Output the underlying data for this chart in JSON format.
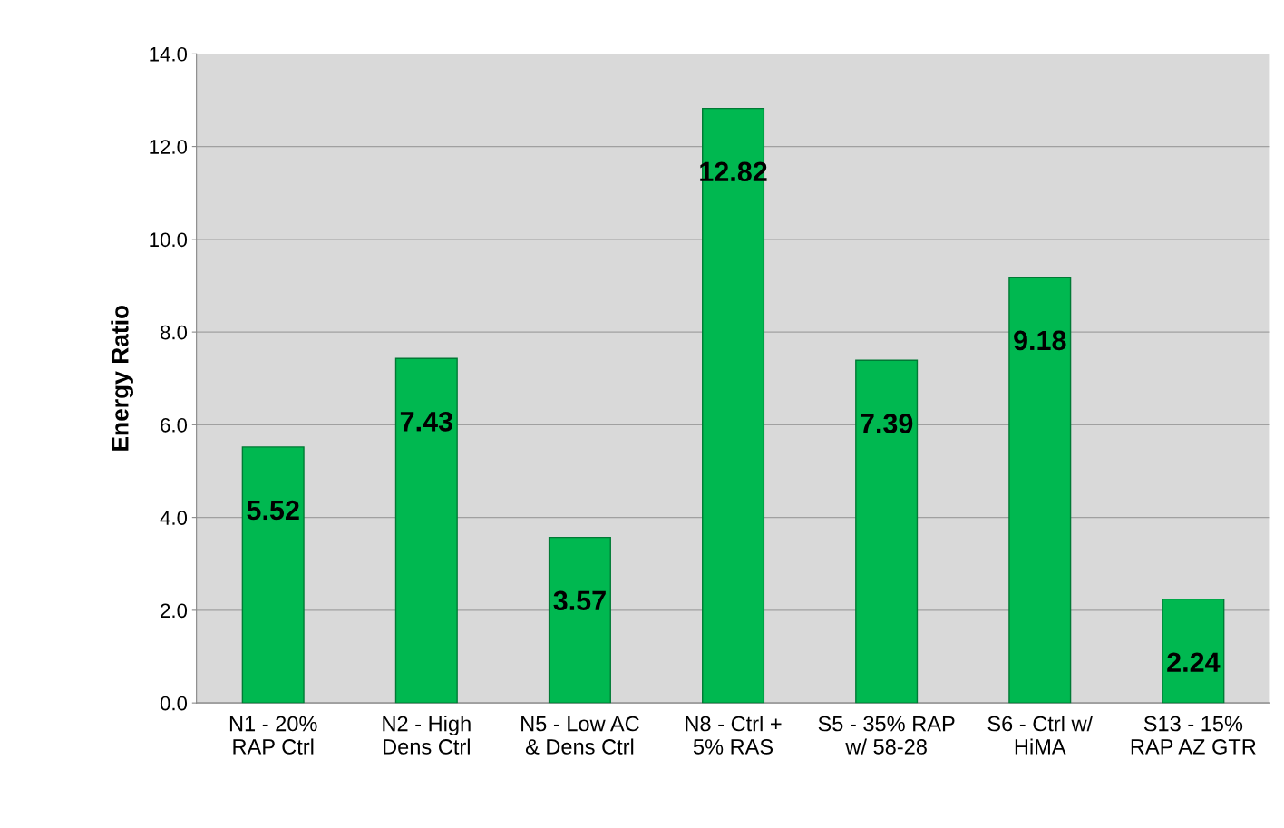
{
  "chart_data": {
    "type": "bar",
    "ylabel": "Energy Ratio",
    "categories": [
      "N1 - 20%\nRAP Ctrl",
      "N2 - High\nDens Ctrl",
      "N5 - Low AC\n& Dens Ctrl",
      "N8 - Ctrl +\n5% RAS",
      "S5 - 35% RAP\nw/ 58-28",
      "S6 - Ctrl w/\nHiMA",
      "S13 - 15%\nRAP AZ GTR"
    ],
    "values": [
      5.52,
      7.43,
      3.57,
      12.82,
      7.39,
      9.18,
      2.24
    ],
    "color": "#00b850",
    "ylim": [
      0,
      14
    ],
    "yticks": [
      {
        "value": 0,
        "label": "0.0"
      },
      {
        "value": 2,
        "label": "2.0"
      },
      {
        "value": 4,
        "label": "4.0"
      },
      {
        "value": 6,
        "label": "6.0"
      },
      {
        "value": 8,
        "label": "8.0"
      },
      {
        "value": 10,
        "label": "10.0"
      },
      {
        "value": 12,
        "label": "12.0"
      },
      {
        "value": 14,
        "label": "14.0"
      }
    ],
    "grid": "y",
    "legend": false,
    "data_labels": true
  }
}
